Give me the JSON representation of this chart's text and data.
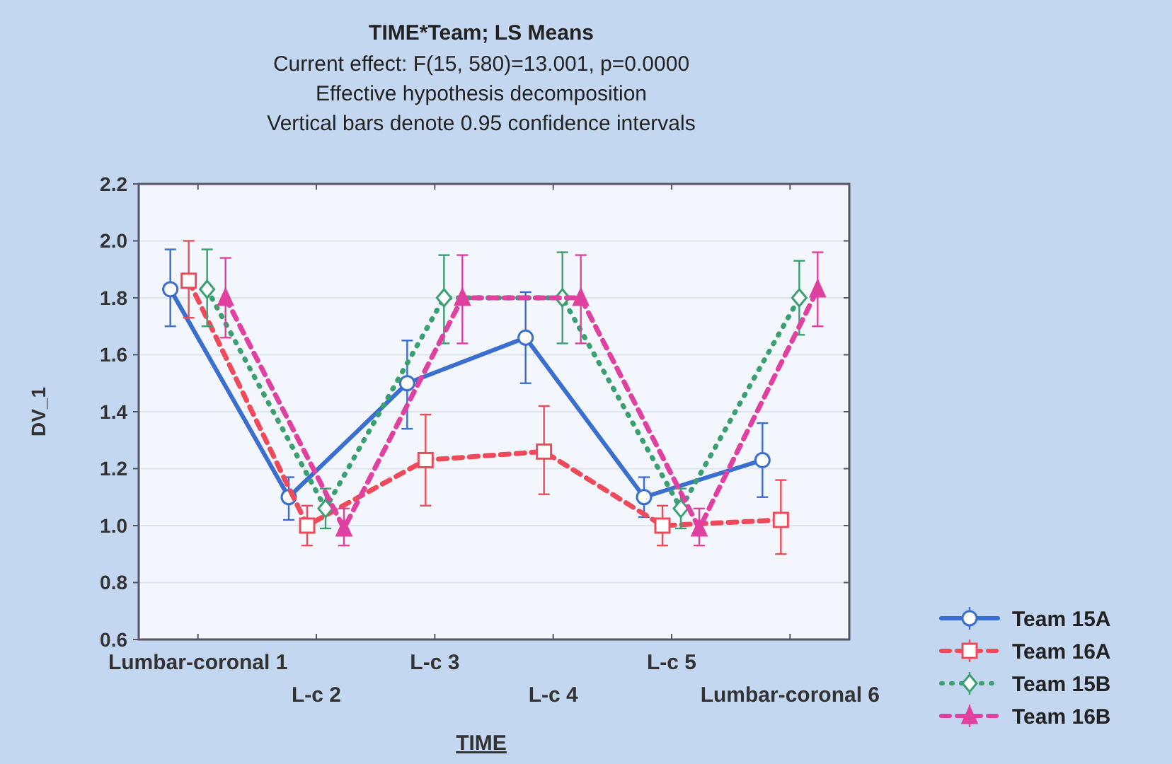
{
  "chart_data": {
    "type": "line",
    "title": "TIME*Team; LS Means",
    "subtitle": "Current effect: F(15, 580)=13.001, p=0.0000",
    "annotations": [
      "Effective hypothesis decomposition",
      "Vertical bars denote 0.95 confidence intervals"
    ],
    "xlabel": "TIME",
    "ylabel": "DV_1",
    "categories": [
      "Lumbar-coronal 1",
      "L-c 2",
      "L-c 3",
      "L-c 4",
      "L-c 5",
      "Lumbar-coronal 6"
    ],
    "ylim": [
      0.6,
      2.2
    ],
    "yticks": [
      0.6,
      0.8,
      {
        "value": 1,
        "label": "1.0"
      },
      1.2,
      1.4,
      1.6,
      1.8,
      {
        "value": 2,
        "label": "2.0"
      },
      2.2
    ],
    "grid": "y",
    "legend": "bottom right",
    "series": [
      {
        "name": "Team 15A",
        "color": "#3a6fd0",
        "marker": "circle",
        "line_style": "solid",
        "values": [
          1.83,
          1.1,
          1.5,
          1.66,
          1.1,
          1.23
        ],
        "errors": [
          [
            1.7,
            1.97
          ],
          [
            1.02,
            1.17
          ],
          [
            1.34,
            1.65
          ],
          [
            1.5,
            1.82
          ],
          [
            1.03,
            1.17
          ],
          [
            1.1,
            1.36
          ]
        ]
      },
      {
        "name": "Team 16A",
        "color": "#f04a5a",
        "marker": "square",
        "line_style": "dashed",
        "values": [
          1.86,
          1.0,
          1.23,
          1.26,
          1.0,
          1.02
        ],
        "errors": [
          [
            1.73,
            2.0
          ],
          [
            0.93,
            1.07
          ],
          [
            1.07,
            1.39
          ],
          [
            1.11,
            1.42
          ],
          [
            0.93,
            1.07
          ],
          [
            0.9,
            1.16
          ]
        ]
      },
      {
        "name": "Team 15B",
        "color": "#3aa070",
        "marker": "diamond",
        "line_style": "dotted",
        "values": [
          1.83,
          1.06,
          1.8,
          1.8,
          1.06,
          1.8
        ],
        "errors": [
          [
            1.7,
            1.97
          ],
          [
            0.99,
            1.13
          ],
          [
            1.64,
            1.95
          ],
          [
            1.64,
            1.96
          ],
          [
            0.99,
            1.13
          ],
          [
            1.67,
            1.93
          ]
        ]
      },
      {
        "name": "Team 16B",
        "color": "#e040a0",
        "marker": "triangle",
        "line_style": "dashed",
        "values": [
          1.8,
          0.99,
          1.8,
          1.8,
          0.99,
          1.83
        ],
        "errors": [
          [
            1.66,
            1.94
          ],
          [
            0.93,
            1.06
          ],
          [
            1.64,
            1.95
          ],
          [
            1.64,
            1.95
          ],
          [
            0.93,
            1.06
          ],
          [
            1.7,
            1.96
          ]
        ]
      }
    ]
  }
}
